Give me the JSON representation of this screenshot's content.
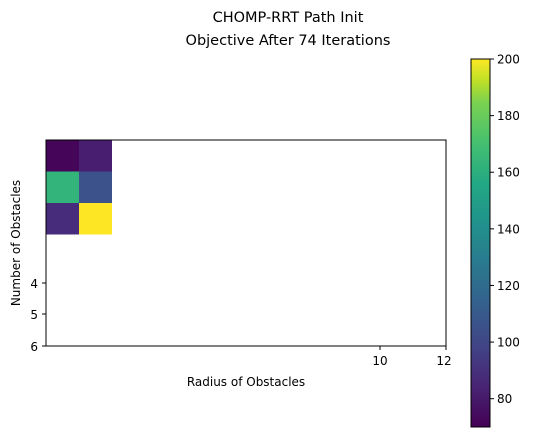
{
  "chart_data": {
    "type": "heatmap",
    "title": "CHOMP-RRT Path Init",
    "subtitle": "Objective After 74 Iterations",
    "xlabel": "Radius of Obstacles",
    "ylabel": "Number of Obstacles",
    "x_ticks": [
      "10",
      "12"
    ],
    "y_ticks": [
      "4",
      "5",
      "6"
    ],
    "cells": [
      {
        "row": 0,
        "col": 0,
        "value": 72
      },
      {
        "row": 0,
        "col": 1,
        "value": 82
      },
      {
        "row": 1,
        "col": 0,
        "value": 163
      },
      {
        "row": 1,
        "col": 1,
        "value": 106
      },
      {
        "row": 2,
        "col": 0,
        "value": 88
      },
      {
        "row": 2,
        "col": 1,
        "value": 200
      }
    ],
    "colormap": "viridis",
    "colorbar": {
      "min": 70,
      "max": 200,
      "ticks": [
        "80",
        "100",
        "120",
        "140",
        "160",
        "180",
        "200"
      ]
    },
    "grid": false
  }
}
